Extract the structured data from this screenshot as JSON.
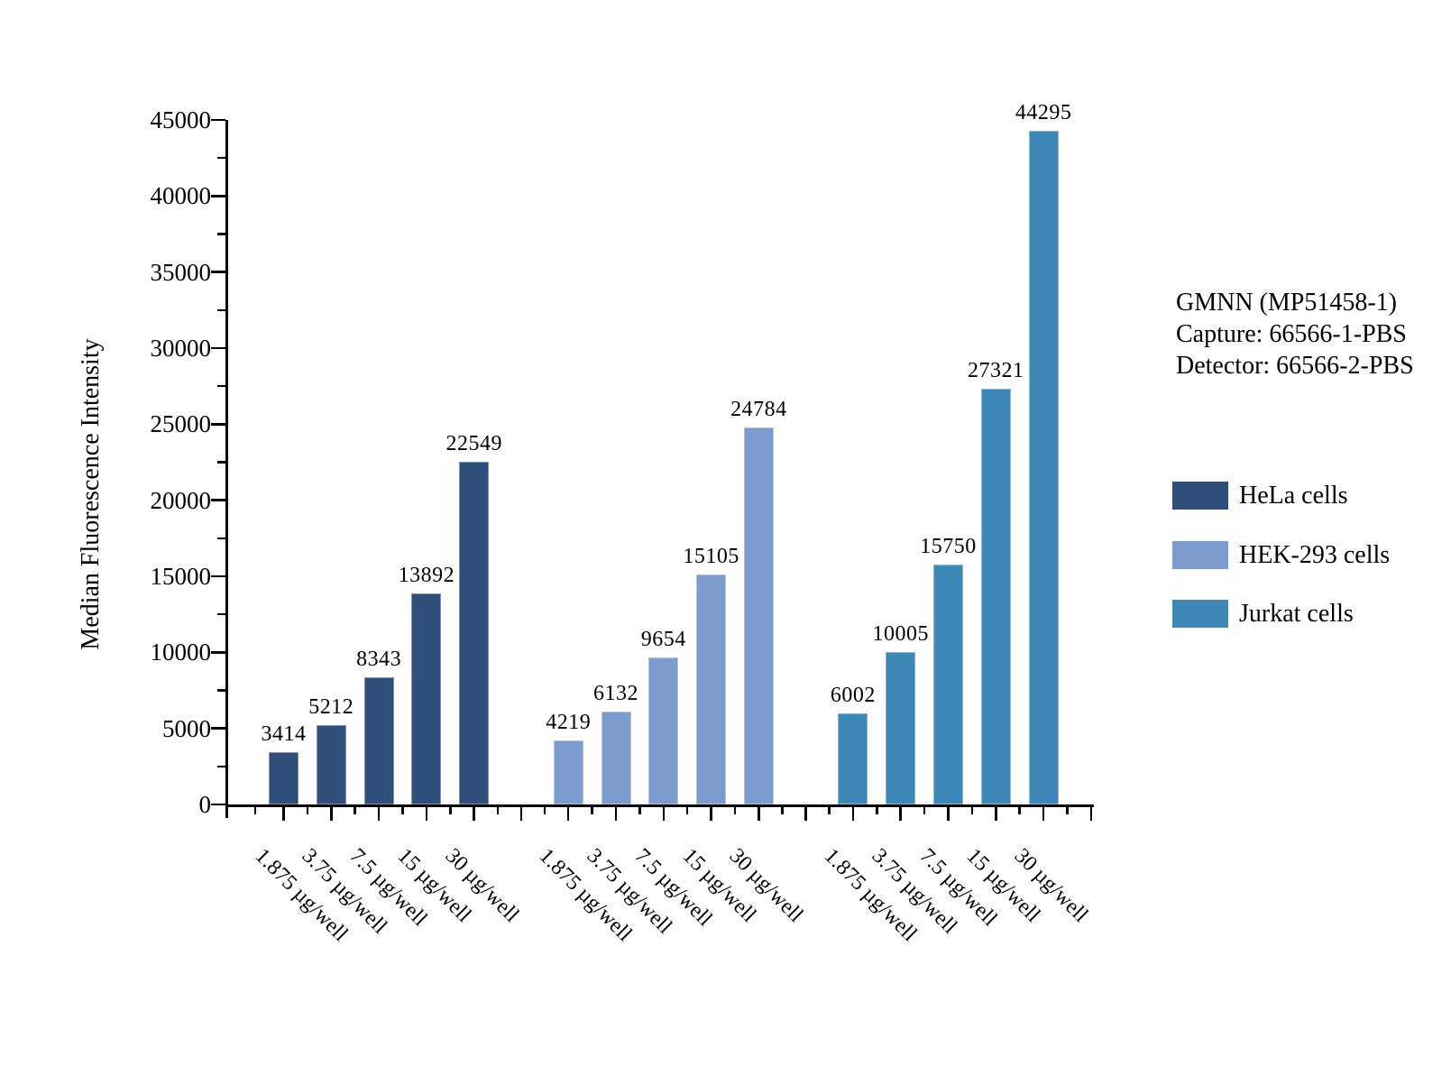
{
  "chart_data": {
    "type": "bar",
    "title": "",
    "ylabel": "Median Fluorescence Intensity",
    "xlabel": "",
    "ylim": [
      0,
      45000
    ],
    "ytick_major_step": 5000,
    "ytick_minor_step": 2500,
    "grid": false,
    "legend_position": "right",
    "bar_value_labels_shown": true,
    "categories": [
      "1.875 µg/well",
      "3.75 µg/well",
      "7.5 µg/well",
      "15 µg/well",
      "30 µg/well"
    ],
    "series": [
      {
        "name": "HeLa cells",
        "color": "#2F4E79",
        "values": [
          3414,
          5212,
          8343,
          13892,
          22549
        ]
      },
      {
        "name": "HEK-293 cells",
        "color": "#7D9CCE",
        "values": [
          4219,
          6132,
          9654,
          15105,
          24784
        ]
      },
      {
        "name": "Jurkat cells",
        "color": "#3E88B8",
        "values": [
          6002,
          10005,
          15750,
          27321,
          44295
        ]
      }
    ],
    "ytick_labels": [
      "0",
      "5000",
      "10000",
      "15000",
      "20000",
      "25000",
      "30000",
      "35000",
      "40000",
      "45000"
    ]
  },
  "annotation": {
    "lines": [
      "GMNN (MP51458-1)",
      "Capture: 66566-1-PBS",
      "Detector: 66566-2-PBS"
    ]
  },
  "colors": {
    "axis": "#000000",
    "text": "#000000",
    "background": "#FFFFFF"
  }
}
